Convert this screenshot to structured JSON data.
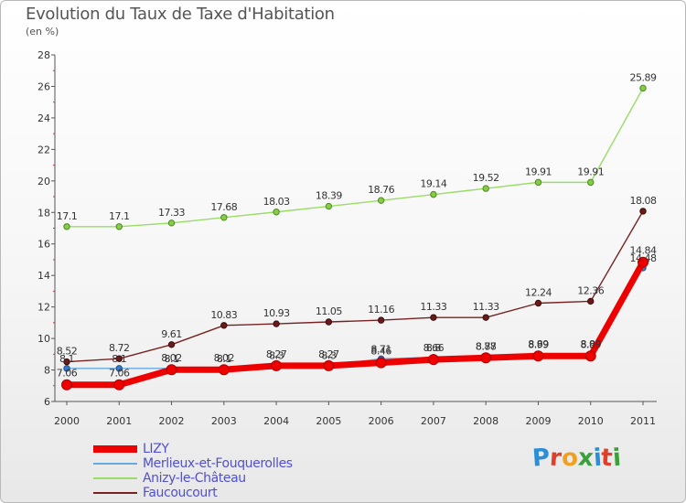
{
  "title": "Evolution du Taux de Taxe d'Habitation",
  "unit": "(en %)",
  "logo": {
    "text": "Proxiti",
    "colors": [
      "#2a8fd6",
      "#e0402a",
      "#f0a020",
      "#3aa03a",
      "#2a8fd6",
      "#e0402a",
      "#3aa03a"
    ]
  },
  "chart_data": {
    "type": "line",
    "x": [
      2000,
      2001,
      2002,
      2003,
      2004,
      2005,
      2006,
      2007,
      2008,
      2009,
      2010,
      2011
    ],
    "ylim": [
      6,
      28
    ],
    "yticks": [
      6,
      8,
      10,
      12,
      14,
      16,
      18,
      20,
      22,
      24,
      26,
      28
    ],
    "grid": false,
    "legend_position": "bottom-left",
    "series": [
      {
        "name": "Anizy-le-Château",
        "color": "#99dd66",
        "values": [
          17.1,
          17.1,
          17.33,
          17.68,
          18.03,
          18.39,
          18.76,
          19.14,
          19.52,
          19.91,
          19.91,
          25.89
        ],
        "labels": [
          "17.1",
          "17.1",
          "17.33",
          "17.68",
          "18.03",
          "18.39",
          "18.76",
          "19.14",
          "19.52",
          "19.91",
          "19.91",
          "25.89"
        ]
      },
      {
        "name": "Faucoucourt",
        "color": "#772222",
        "values": [
          8.52,
          8.72,
          9.61,
          10.83,
          10.93,
          11.05,
          11.16,
          11.33,
          11.33,
          12.24,
          12.36,
          18.08
        ],
        "labels": [
          "8.52",
          "8.72",
          "9.61",
          "10.83",
          "10.93",
          "11.05",
          "11.16",
          "11.33",
          "11.33",
          "12.24",
          "12.36",
          "18.08"
        ]
      },
      {
        "name": "Merlieux-et-Fouquerolles",
        "color": "#66aadd",
        "values": [
          8.1,
          8.1,
          8.1,
          8.1,
          8.3,
          8.3,
          8.71,
          8.8,
          8.88,
          8.99,
          8.99,
          14.48
        ],
        "labels": [
          "8.1",
          "8.1",
          "8.1",
          "8.1",
          "8.3",
          "8.3",
          "8.71",
          "8.8",
          "8.88",
          "8.99",
          "8.99",
          "14.48"
        ]
      },
      {
        "name": "LIZY",
        "color": "#ee0000",
        "values": [
          7.06,
          7.06,
          8.02,
          8.02,
          8.27,
          8.27,
          8.46,
          8.66,
          8.77,
          8.89,
          8.89,
          14.84
        ],
        "labels": [
          "7.06",
          "7.06",
          "8.02",
          "8.02",
          "8.27",
          "8.27",
          "8.46",
          "8.66",
          "8.77",
          "8.89",
          "8.89",
          "14.84"
        ]
      }
    ],
    "legend_order": [
      "LIZY",
      "Merlieux-et-Fouquerolles",
      "Anizy-le-Château",
      "Faucoucourt"
    ]
  }
}
